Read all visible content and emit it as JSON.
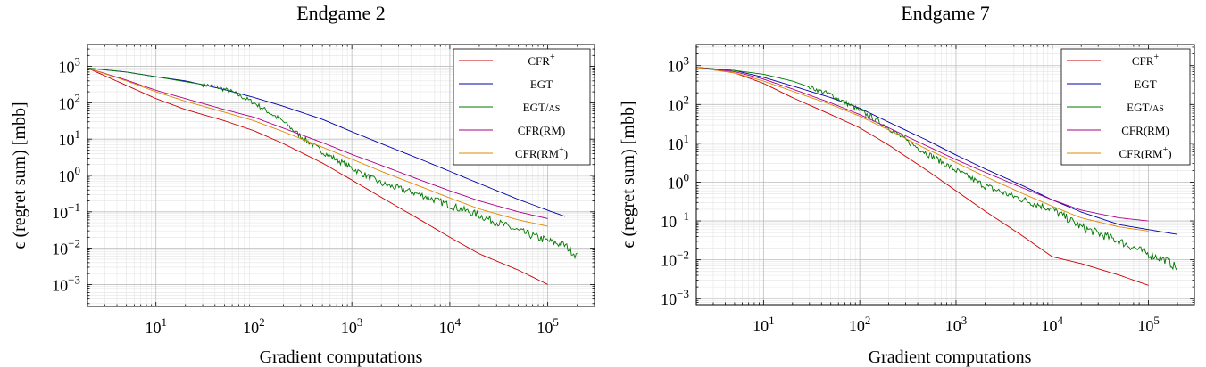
{
  "chart_data": [
    {
      "type": "line",
      "title": "Endgame 2",
      "xlabel": "Gradient computations",
      "ylabel": "ϵ (regret sum) [mbb]",
      "xscale": "log",
      "yscale": "log",
      "xlim": [
        2,
        300000
      ],
      "ylim": [
        0.00025,
        4000
      ],
      "xticks": [
        {
          "value": 10,
          "mantissa": "10",
          "exp": "1"
        },
        {
          "value": 100,
          "mantissa": "10",
          "exp": "2"
        },
        {
          "value": 1000,
          "mantissa": "10",
          "exp": "3"
        },
        {
          "value": 10000,
          "mantissa": "10",
          "exp": "4"
        },
        {
          "value": 100000,
          "mantissa": "10",
          "exp": "5"
        }
      ],
      "yticks": [
        {
          "value": 0.001,
          "mantissa": "10",
          "exp": "−3"
        },
        {
          "value": 0.01,
          "mantissa": "10",
          "exp": "−2"
        },
        {
          "value": 0.1,
          "mantissa": "10",
          "exp": "−1"
        },
        {
          "value": 1,
          "mantissa": "10",
          "exp": "0"
        },
        {
          "value": 10,
          "mantissa": "10",
          "exp": "1"
        },
        {
          "value": 100,
          "mantissa": "10",
          "exp": "2"
        },
        {
          "value": 1000,
          "mantissa": "10",
          "exp": "3"
        }
      ],
      "legend_position": "top-right",
      "series": [
        {
          "name": "CFR",
          "sup": "+",
          "color": "#cc0000",
          "noisy": false,
          "x": [
            2,
            5,
            10,
            20,
            50,
            100,
            200,
            500,
            1000,
            2000,
            5000,
            10000,
            20000,
            50000,
            100000
          ],
          "y": [
            900,
            300,
            130,
            65,
            32,
            17,
            7.5,
            2.2,
            0.75,
            0.25,
            0.06,
            0.02,
            0.007,
            0.0025,
            0.001
          ]
        },
        {
          "name": "EGT",
          "sup": "",
          "color": "#0000aa",
          "noisy": false,
          "x": [
            2,
            5,
            10,
            20,
            50,
            100,
            200,
            500,
            1000,
            2000,
            5000,
            10000,
            20000,
            50000,
            100000,
            150000
          ],
          "y": [
            900,
            700,
            520,
            400,
            230,
            140,
            80,
            35,
            16,
            7.5,
            2.8,
            1.3,
            0.6,
            0.22,
            0.11,
            0.075
          ]
        },
        {
          "name": "EGT/as",
          "sup": "",
          "color": "#007700",
          "noisy": true,
          "x": [
            2,
            5,
            10,
            20,
            40,
            60,
            100,
            150,
            200,
            300,
            500,
            1000,
            2000,
            5000,
            10000,
            20000,
            50000,
            100000,
            150000,
            200000
          ],
          "y": [
            900,
            700,
            520,
            380,
            280,
            200,
            100,
            50,
            30,
            12,
            4.5,
            1.6,
            0.6,
            0.3,
            0.15,
            0.08,
            0.03,
            0.016,
            0.012,
            0.006
          ]
        },
        {
          "name": "CFR(RM)",
          "sup": "",
          "color": "#aa0088",
          "noisy": false,
          "x": [
            2,
            5,
            10,
            20,
            50,
            100,
            200,
            500,
            1000,
            2000,
            5000,
            10000,
            20000,
            50000,
            100000
          ],
          "y": [
            900,
            420,
            220,
            130,
            65,
            40,
            20,
            8,
            3.8,
            1.9,
            0.75,
            0.38,
            0.2,
            0.1,
            0.065
          ]
        },
        {
          "name": "CFR(RM",
          "sup": "+",
          "suffix": ")",
          "color": "#e08800",
          "noisy": false,
          "x": [
            2,
            5,
            10,
            20,
            50,
            100,
            200,
            500,
            1000,
            2000,
            5000,
            10000,
            20000,
            50000,
            100000
          ],
          "y": [
            900,
            400,
            200,
            110,
            55,
            32,
            16,
            6,
            2.8,
            1.3,
            0.5,
            0.24,
            0.12,
            0.06,
            0.04
          ]
        }
      ]
    },
    {
      "type": "line",
      "title": "Endgame 7",
      "xlabel": "Gradient computations",
      "ylabel": "ϵ (regret sum) [mbb]",
      "xscale": "log",
      "yscale": "log",
      "xlim": [
        2,
        300000
      ],
      "ylim": [
        0.0007,
        3500
      ],
      "xticks": [
        {
          "value": 10,
          "mantissa": "10",
          "exp": "1"
        },
        {
          "value": 100,
          "mantissa": "10",
          "exp": "2"
        },
        {
          "value": 1000,
          "mantissa": "10",
          "exp": "3"
        },
        {
          "value": 10000,
          "mantissa": "10",
          "exp": "4"
        },
        {
          "value": 100000,
          "mantissa": "10",
          "exp": "5"
        }
      ],
      "yticks": [
        {
          "value": 0.001,
          "mantissa": "10",
          "exp": "−3"
        },
        {
          "value": 0.01,
          "mantissa": "10",
          "exp": "−2"
        },
        {
          "value": 0.1,
          "mantissa": "10",
          "exp": "−1"
        },
        {
          "value": 1,
          "mantissa": "10",
          "exp": "0"
        },
        {
          "value": 10,
          "mantissa": "10",
          "exp": "1"
        },
        {
          "value": 100,
          "mantissa": "10",
          "exp": "2"
        },
        {
          "value": 1000,
          "mantissa": "10",
          "exp": "3"
        }
      ],
      "legend_position": "top-right",
      "series": [
        {
          "name": "CFR",
          "sup": "+",
          "color": "#cc0000",
          "noisy": false,
          "x": [
            2,
            5,
            10,
            20,
            50,
            100,
            200,
            500,
            1000,
            2000,
            5000,
            10000,
            20000,
            50000,
            100000
          ],
          "y": [
            900,
            650,
            350,
            150,
            55,
            25,
            9,
            2,
            0.6,
            0.18,
            0.04,
            0.012,
            0.008,
            0.004,
            0.0022
          ]
        },
        {
          "name": "EGT",
          "sup": "",
          "color": "#0000aa",
          "noisy": false,
          "x": [
            2,
            5,
            10,
            20,
            50,
            100,
            200,
            500,
            1000,
            2000,
            5000,
            10000,
            20000,
            50000,
            100000,
            200000
          ],
          "y": [
            900,
            750,
            500,
            300,
            150,
            80,
            35,
            12,
            5,
            2.2,
            0.8,
            0.35,
            0.17,
            0.08,
            0.06,
            0.045
          ]
        },
        {
          "name": "EGT/as",
          "sup": "",
          "color": "#007700",
          "noisy": true,
          "x": [
            2,
            5,
            10,
            20,
            50,
            100,
            200,
            300,
            500,
            1000,
            2000,
            5000,
            10000,
            20000,
            50000,
            100000,
            150000,
            200000
          ],
          "y": [
            900,
            750,
            600,
            400,
            180,
            70,
            25,
            12,
            5.5,
            2,
            0.8,
            0.35,
            0.2,
            0.07,
            0.03,
            0.014,
            0.01,
            0.006
          ]
        },
        {
          "name": "CFR(RM)",
          "sup": "",
          "color": "#aa0088",
          "noisy": false,
          "x": [
            2,
            5,
            10,
            20,
            50,
            100,
            200,
            500,
            1000,
            2000,
            5000,
            10000,
            20000,
            50000,
            100000
          ],
          "y": [
            900,
            700,
            450,
            250,
            110,
            55,
            25,
            8.5,
            3.8,
            1.8,
            0.7,
            0.35,
            0.19,
            0.12,
            0.1
          ]
        },
        {
          "name": "CFR(RM",
          "sup": "+",
          "suffix": ")",
          "color": "#e08800",
          "noisy": false,
          "x": [
            2,
            5,
            10,
            20,
            50,
            100,
            200,
            500,
            1000,
            2000,
            5000,
            10000,
            20000,
            50000,
            100000
          ],
          "y": [
            900,
            650,
            400,
            220,
            100,
            50,
            22,
            7,
            3.2,
            1.4,
            0.5,
            0.24,
            0.12,
            0.07,
            0.055
          ]
        }
      ]
    }
  ]
}
